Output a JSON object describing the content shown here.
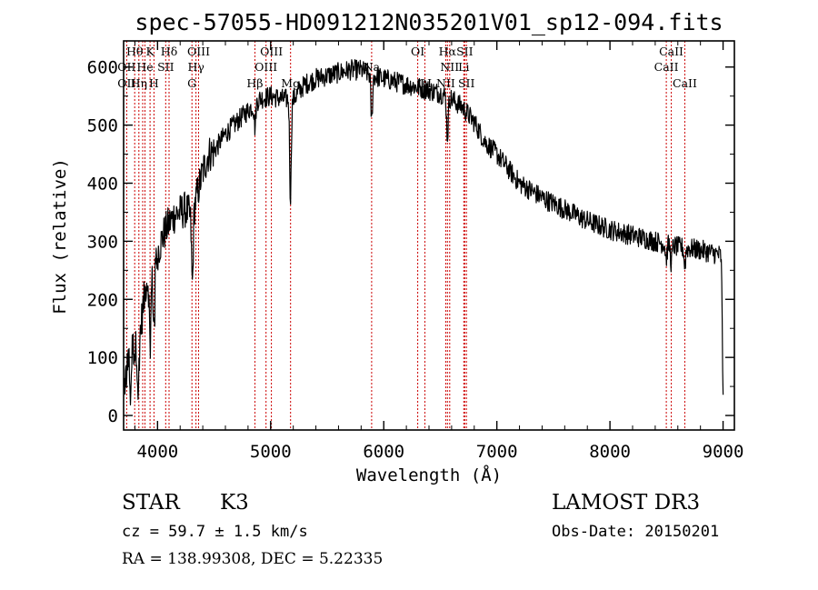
{
  "chart_data": {
    "type": "line",
    "title": "spec-57055-HD091212N035201V01_sp12-094.fits",
    "xlabel": "Wavelength (Å)",
    "ylabel": "Flux (relative)",
    "xlim": [
      3700,
      9100
    ],
    "ylim": [
      -25,
      645
    ],
    "xticks": [
      4000,
      5000,
      6000,
      7000,
      8000,
      9000
    ],
    "xtick_labels": [
      "4000",
      "5000",
      "6000",
      "7000",
      "8000",
      "9000"
    ],
    "yticks": [
      0,
      100,
      200,
      300,
      400,
      500,
      600
    ],
    "ytick_labels": [
      "0",
      "100",
      "200",
      "300",
      "400",
      "500",
      "600"
    ],
    "continuum": {
      "wavelength": [
        3700,
        3760,
        3800,
        3850,
        3900,
        3950,
        4000,
        4050,
        4100,
        4150,
        4200,
        4250,
        4300,
        4350,
        4400,
        4450,
        4500,
        4600,
        4700,
        4800,
        4900,
        5000,
        5100,
        5200,
        5300,
        5400,
        5500,
        5600,
        5700,
        5800,
        5900,
        6000,
        6100,
        6200,
        6300,
        6400,
        6500,
        6600,
        6700,
        6800,
        6900,
        7000,
        7100,
        7200,
        7400,
        7600,
        7800,
        8000,
        8200,
        8400,
        8600,
        8800,
        9000
      ],
      "flux": [
        40,
        130,
        110,
        150,
        230,
        240,
        280,
        310,
        330,
        345,
        350,
        355,
        340,
        380,
        420,
        450,
        455,
        485,
        505,
        525,
        545,
        550,
        545,
        545,
        570,
        580,
        585,
        590,
        595,
        595,
        585,
        580,
        575,
        570,
        565,
        560,
        555,
        545,
        530,
        505,
        470,
        450,
        425,
        400,
        375,
        355,
        335,
        320,
        310,
        300,
        290,
        285,
        275
      ]
    },
    "noise_amplitude": 18,
    "absorption_features": [
      {
        "wavelength": 3760,
        "depth": 100
      },
      {
        "wavelength": 3830,
        "depth": 90
      },
      {
        "wavelength": 3934,
        "depth": 110
      },
      {
        "wavelength": 3968,
        "depth": 100
      },
      {
        "wavelength": 4308,
        "depth": 120
      },
      {
        "wavelength": 4861,
        "depth": 40
      },
      {
        "wavelength": 5175,
        "depth": 170
      },
      {
        "wavelength": 5893,
        "depth": 80
      },
      {
        "wavelength": 6563,
        "depth": 70
      },
      {
        "wavelength": 8498,
        "depth": 25
      },
      {
        "wavelength": 8542,
        "depth": 30
      },
      {
        "wavelength": 8662,
        "depth": 30
      },
      {
        "wavelength": 9000,
        "depth": 230
      }
    ],
    "reference_lines": [
      {
        "wavelength": 3727
      },
      {
        "wavelength": 3798
      },
      {
        "wavelength": 3835
      },
      {
        "wavelength": 3869
      },
      {
        "wavelength": 3889
      },
      {
        "wavelength": 3934
      },
      {
        "wavelength": 3968
      },
      {
        "wavelength": 4072
      },
      {
        "wavelength": 4102
      },
      {
        "wavelength": 4304
      },
      {
        "wavelength": 4340
      },
      {
        "wavelength": 4363
      },
      {
        "wavelength": 4861
      },
      {
        "wavelength": 4959
      },
      {
        "wavelength": 5007
      },
      {
        "wavelength": 5176
      },
      {
        "wavelength": 5893
      },
      {
        "wavelength": 6300
      },
      {
        "wavelength": 6364
      },
      {
        "wavelength": 6548
      },
      {
        "wavelength": 6563
      },
      {
        "wavelength": 6583
      },
      {
        "wavelength": 6708
      },
      {
        "wavelength": 6716
      },
      {
        "wavelength": 6731
      },
      {
        "wavelength": 8498
      },
      {
        "wavelength": 8542
      },
      {
        "wavelength": 8662
      }
    ],
    "line_labels": [
      {
        "text": "Hθ",
        "wavelength": 3798,
        "row": 0
      },
      {
        "text": "K",
        "wavelength": 3934,
        "row": 0
      },
      {
        "text": "Hδ",
        "wavelength": 4102,
        "row": 0
      },
      {
        "text": "OIII",
        "wavelength": 4363,
        "row": 0
      },
      {
        "text": "OIII",
        "wavelength": 5007,
        "row": 0
      },
      {
        "text": "OI",
        "wavelength": 6300,
        "row": 0
      },
      {
        "text": "Hα",
        "wavelength": 6563,
        "row": 0
      },
      {
        "text": "SII",
        "wavelength": 6716,
        "row": 0
      },
      {
        "text": "CaII",
        "wavelength": 8542,
        "row": 0
      },
      {
        "text": "OII",
        "wavelength": 3727,
        "row": 1
      },
      {
        "text": "He",
        "wavelength": 3889,
        "row": 1
      },
      {
        "text": "SII",
        "wavelength": 4072,
        "row": 1
      },
      {
        "text": "Hγ",
        "wavelength": 4340,
        "row": 1
      },
      {
        "text": "OIII",
        "wavelength": 4959,
        "row": 1
      },
      {
        "text": "Na",
        "wavelength": 5893,
        "row": 1
      },
      {
        "text": "NII",
        "wavelength": 6583,
        "row": 1
      },
      {
        "text": "Li",
        "wavelength": 6708,
        "row": 1
      },
      {
        "text": "CaII",
        "wavelength": 8498,
        "row": 1
      },
      {
        "text": "OII",
        "wavelength": 3727,
        "row": 2
      },
      {
        "text": "Hη",
        "wavelength": 3835,
        "row": 2
      },
      {
        "text": "H",
        "wavelength": 3968,
        "row": 2
      },
      {
        "text": "G",
        "wavelength": 4304,
        "row": 2
      },
      {
        "text": "Hβ",
        "wavelength": 4861,
        "row": 2
      },
      {
        "text": "Mg",
        "wavelength": 5176,
        "row": 2
      },
      {
        "text": "OI",
        "wavelength": 6364,
        "row": 2
      },
      {
        "text": "NII",
        "wavelength": 6548,
        "row": 2
      },
      {
        "text": "SII",
        "wavelength": 6731,
        "row": 2
      },
      {
        "text": "CaII",
        "wavelength": 8662,
        "row": 2
      }
    ]
  },
  "info": {
    "class_label": "STAR",
    "subclass": "K3",
    "survey": "LAMOST DR3",
    "redshift_text": "cz = 59.7 ± 1.5 km/s",
    "obs_date": "Obs-Date: 20150201",
    "coords": "RA = 138.99308, DEC =   5.22335"
  },
  "colors": {
    "spectrum": "#000000",
    "reference_line": "#cc0000",
    "axes": "#000000",
    "background": "#ffffff"
  }
}
